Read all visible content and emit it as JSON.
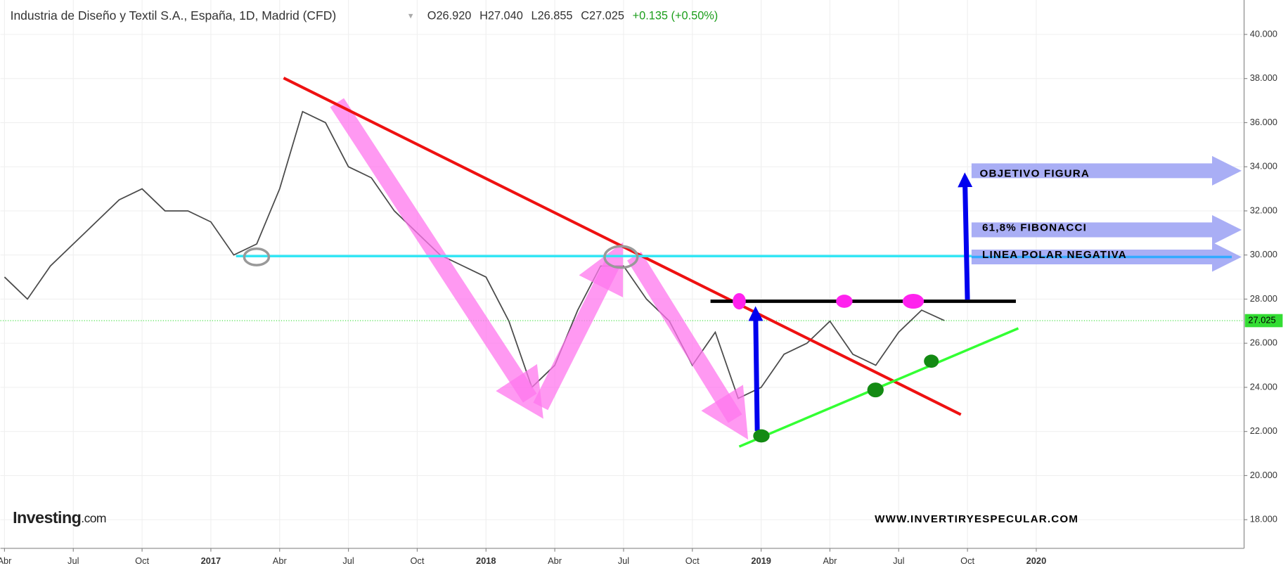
{
  "chart_data": {
    "type": "line",
    "title": "Industria de Diseño y Textil S.A., España, 1D, Madrid (CFD)",
    "quote": [
      "O26.920",
      "H27.040",
      "L26.855",
      "C27.025",
      "+0.135 (+0.50%)"
    ],
    "x": [
      "2016-04",
      "2016-05",
      "2016-06",
      "2016-07",
      "2016-08",
      "2016-09",
      "2016-10",
      "2016-11",
      "2016-12",
      "2017-01",
      "2017-02",
      "2017-03",
      "2017-04",
      "2017-05",
      "2017-06",
      "2017-07",
      "2017-08",
      "2017-09",
      "2017-10",
      "2017-11",
      "2017-12",
      "2018-01",
      "2018-02",
      "2018-03",
      "2018-04",
      "2018-05",
      "2018-06",
      "2018-07",
      "2018-08",
      "2018-09",
      "2018-10",
      "2018-11",
      "2018-12",
      "2019-01",
      "2019-02",
      "2019-03",
      "2019-04",
      "2019-05",
      "2019-06",
      "2019-07",
      "2019-08",
      "2019-09"
    ],
    "series": [
      {
        "name": "Industria de Diseño y Textil S.A.",
        "color": "#4a4a4a",
        "values": [
          29,
          28,
          29.5,
          30.5,
          31.5,
          32.5,
          33,
          32,
          32,
          31.5,
          30,
          30.5,
          33,
          36.5,
          36,
          34,
          33.5,
          32,
          31,
          30,
          29.5,
          29,
          27,
          24,
          25,
          27.5,
          29.5,
          29.5,
          28,
          27,
          25,
          26.5,
          23.5,
          24,
          25.5,
          26,
          27,
          25.5,
          25,
          26.5,
          27.5,
          27.025
        ]
      }
    ],
    "last_price": 27.025,
    "last_price_color": "#33dd33",
    "ylim": [
      16.7,
      41.56
    ],
    "yticks": [
      {
        "value": 18,
        "label": "18.000"
      },
      {
        "value": 20,
        "label": "20.000"
      },
      {
        "value": 22,
        "label": "22.000"
      },
      {
        "value": 24,
        "label": "24.000"
      },
      {
        "value": 26,
        "label": "26.000"
      },
      {
        "value": 28,
        "label": "28.000"
      },
      {
        "value": 30,
        "label": "30.000"
      },
      {
        "value": 32,
        "label": "32.000"
      },
      {
        "value": 34,
        "label": "34.000"
      },
      {
        "value": 36,
        "label": "36.000"
      },
      {
        "value": 38,
        "label": "38.000"
      },
      {
        "value": 40,
        "label": "40.000"
      }
    ],
    "xticks": [
      {
        "value": "2016-04",
        "label": "Abr"
      },
      {
        "value": "2016-07",
        "label": "Jul"
      },
      {
        "value": "2016-10",
        "label": "Oct"
      },
      {
        "value": "2017-01",
        "label": "2017"
      },
      {
        "value": "2017-04",
        "label": "Abr"
      },
      {
        "value": "2017-07",
        "label": "Jul"
      },
      {
        "value": "2017-10",
        "label": "Oct"
      },
      {
        "value": "2018-01",
        "label": "2018"
      },
      {
        "value": "2018-04",
        "label": "Abr"
      },
      {
        "value": "2018-07",
        "label": "Jul"
      },
      {
        "value": "2018-10",
        "label": "Oct"
      },
      {
        "value": "2019-01",
        "label": "2019"
      },
      {
        "value": "2019-04",
        "label": "Abr"
      },
      {
        "value": "2019-07",
        "label": "Jul"
      },
      {
        "value": "2019-10",
        "label": "Oct"
      },
      {
        "value": "2020-01",
        "label": "2020"
      }
    ],
    "grid": true,
    "annotations": [
      "OBJETIVO FIGURA",
      "61,8% FIBONACCI",
      "LINEA POLAR NEGATIVA",
      "WWW.INVERTIRYESPECULAR.COM"
    ],
    "logo": [
      "Investing",
      ".com"
    ]
  }
}
